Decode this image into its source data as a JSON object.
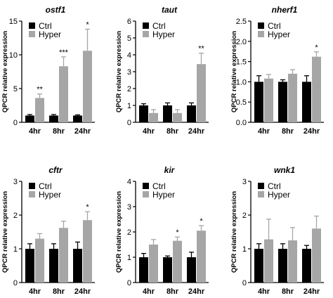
{
  "colors": {
    "ctrl": "#000000",
    "hyper": "#a6a6a6"
  },
  "chart_data": [
    {
      "type": "bar",
      "title": "ostf1",
      "ylabel": "QPCR relative expression",
      "categories": [
        "4hr",
        "8hr",
        "24hr"
      ],
      "yticks": [
        "0",
        "5",
        "10",
        "15"
      ],
      "ylim": [
        0,
        15
      ],
      "legend": [
        "Ctrl",
        "Hyper"
      ],
      "series": [
        {
          "name": "Ctrl",
          "values": [
            1.0,
            1.0,
            1.0
          ],
          "errors": [
            0.15,
            0.15,
            0.1
          ]
        },
        {
          "name": "Hyper",
          "values": [
            3.6,
            8.3,
            10.6
          ],
          "errors": [
            0.6,
            1.4,
            3.2
          ]
        }
      ],
      "annotations": [
        "**",
        "***",
        "*"
      ]
    },
    {
      "type": "bar",
      "title": "taut",
      "ylabel": "QPCR relative expression",
      "categories": [
        "4hr",
        "8hr",
        "24hr"
      ],
      "yticks": [
        "0",
        "1",
        "2",
        "3",
        "4",
        "5",
        "6"
      ],
      "ylim": [
        0,
        6
      ],
      "legend": [
        "Ctrl",
        "Hyper"
      ],
      "series": [
        {
          "name": "Ctrl",
          "values": [
            1.0,
            1.0,
            1.0
          ],
          "errors": [
            0.1,
            0.15,
            0.15
          ]
        },
        {
          "name": "Hyper",
          "values": [
            0.55,
            0.55,
            3.45
          ],
          "errors": [
            0.2,
            0.2,
            0.65
          ]
        }
      ],
      "annotations": [
        "",
        "",
        "**"
      ]
    },
    {
      "type": "bar",
      "title": "nherf1",
      "ylabel": "QPCR relative expression",
      "categories": [
        "4hr",
        "8hr",
        "24hr"
      ],
      "yticks": [
        "0.0",
        "0.5",
        "1.0",
        "1.5",
        "2.0",
        "2.5"
      ],
      "ylim": [
        0,
        2.5
      ],
      "legend": [
        "Ctrl",
        "Hyper"
      ],
      "series": [
        {
          "name": "Ctrl",
          "values": [
            1.0,
            1.0,
            1.0
          ],
          "errors": [
            0.15,
            0.05,
            0.15
          ]
        },
        {
          "name": "Hyper",
          "values": [
            1.08,
            1.2,
            1.62
          ],
          "errors": [
            0.1,
            0.1,
            0.12
          ]
        }
      ],
      "annotations": [
        "",
        "",
        "*"
      ]
    },
    {
      "type": "bar",
      "title": "cftr",
      "ylabel": "QPCR relative expression",
      "categories": [
        "4hr",
        "8hr",
        "24hr"
      ],
      "yticks": [
        "0",
        "1",
        "2",
        "3"
      ],
      "ylim": [
        0,
        3
      ],
      "legend": [
        "Ctrl",
        "Hyper"
      ],
      "series": [
        {
          "name": "Ctrl",
          "values": [
            1.0,
            1.0,
            1.0
          ],
          "errors": [
            0.15,
            0.15,
            0.2
          ]
        },
        {
          "name": "Hyper",
          "values": [
            1.3,
            1.62,
            1.85
          ],
          "errors": [
            0.15,
            0.2,
            0.25
          ]
        }
      ],
      "annotations": [
        "",
        "",
        "*"
      ]
    },
    {
      "type": "bar",
      "title": "kir",
      "ylabel": "QPCR relative expression",
      "categories": [
        "4hr",
        "8hr",
        "24hr"
      ],
      "yticks": [
        "0",
        "1",
        "2",
        "3",
        "4"
      ],
      "ylim": [
        0,
        4
      ],
      "legend": [
        "Ctrl",
        "Hyper"
      ],
      "series": [
        {
          "name": "Ctrl",
          "values": [
            1.0,
            1.0,
            1.0
          ],
          "errors": [
            0.15,
            0.05,
            0.2
          ]
        },
        {
          "name": "Hyper",
          "values": [
            1.5,
            1.65,
            2.05
          ],
          "errors": [
            0.2,
            0.15,
            0.2
          ]
        }
      ],
      "annotations": [
        "",
        "*",
        "*"
      ]
    },
    {
      "type": "bar",
      "title": "wnk1",
      "ylabel": "QPCR relative expression",
      "categories": [
        "4hr",
        "8hr",
        "24hr"
      ],
      "yticks": [
        "0",
        "1",
        "2",
        "3"
      ],
      "ylim": [
        0,
        3
      ],
      "legend": [
        "Ctrl",
        "Hyper"
      ],
      "series": [
        {
          "name": "Ctrl",
          "values": [
            1.0,
            1.0,
            1.0
          ],
          "errors": [
            0.15,
            0.15,
            0.1
          ]
        },
        {
          "name": "Hyper",
          "values": [
            1.28,
            1.25,
            1.6
          ],
          "errors": [
            0.6,
            0.38,
            0.37
          ]
        }
      ],
      "annotations": [
        "",
        "",
        ""
      ]
    }
  ]
}
